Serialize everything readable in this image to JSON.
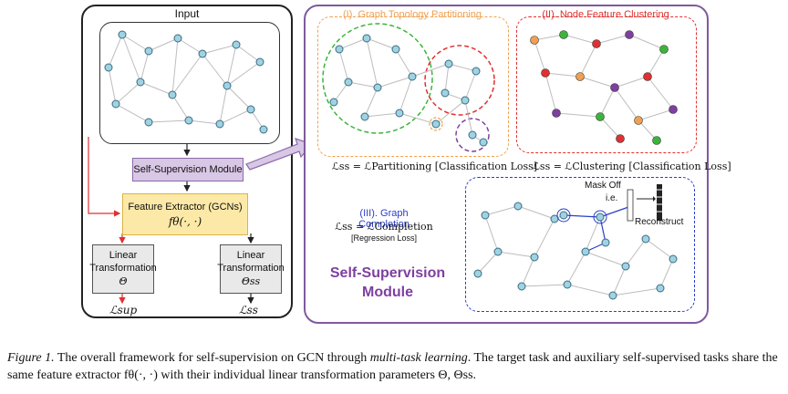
{
  "left_panel": {
    "input_label": "Input",
    "ssm_label": "Self-Supervision Module",
    "fe_label": "Feature Extractor (GCNs)",
    "fe_formula": "fθ(·, ·)",
    "lt_label": "Linear Transformation",
    "theta": "Θ",
    "theta_ss": "Θss",
    "loss_sup": "ℒsup",
    "loss_ss": "ℒss"
  },
  "right_panel": {
    "p1_title": "(I). Graph Topology Partitioning",
    "p1_loss": "ℒss = ℒPartitioning [Classification Loss]",
    "p2_title": "(II). Node Feature Clustering",
    "p2_loss": "ℒss = ℒClustering [Classification Loss]",
    "p3_title": "(III). Graph Completion",
    "p3_loss": "ℒss = ℒCompletion",
    "p3_sub": "[Regression Loss]",
    "mask_off": "Mask Off",
    "ie": "i.e.",
    "reconstruct": "Reconstruct",
    "ssm_big_1": "Self-Supervision",
    "ssm_big_2": "Module"
  },
  "caption": {
    "p1": "Figure 1.",
    "p2": " The overall framework for self-supervision on GCN through ",
    "p3": "multi-task learning",
    "p4": ". The target task and auxiliary self-supervised tasks share the same feature extractor fθ(·, ·) with their individual linear transformation parameters Θ, Θss."
  },
  "colors": {
    "node": "#9fd3e3",
    "node_stroke": "#3b6b80",
    "edge": "#bdbdbd",
    "green": "#3cb43c",
    "red": "#e03030",
    "purple": "#7e3fa0",
    "orange": "#f0a050",
    "blue": "#2a3ec8",
    "yellow_fill": "#fde9a7",
    "lav_fill": "#d9c7e6"
  }
}
